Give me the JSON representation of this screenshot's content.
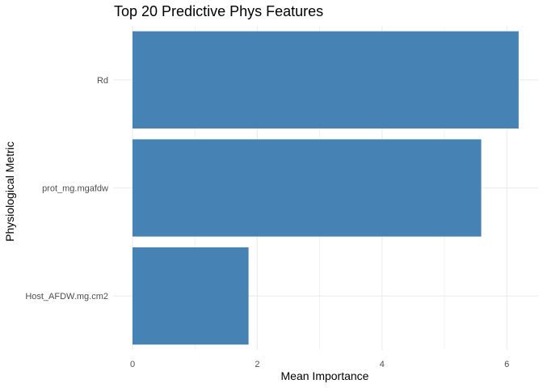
{
  "chart_data": {
    "type": "bar",
    "orientation": "horizontal",
    "title": "Top 20 Predictive Phys Features",
    "xlabel": "Mean Importance",
    "ylabel": "Physiological Metric",
    "categories": [
      "Rd",
      "prot_mg.mgafdw",
      "Host_AFDW.mg.cm2"
    ],
    "values": [
      6.19,
      5.59,
      1.86
    ],
    "xlim": [
      0,
      6.5
    ],
    "xticks": [
      0,
      2,
      4,
      6
    ],
    "grid": true,
    "legend": "none",
    "bar_color": "#4682B4",
    "grid_color": "#EBEBEB"
  }
}
